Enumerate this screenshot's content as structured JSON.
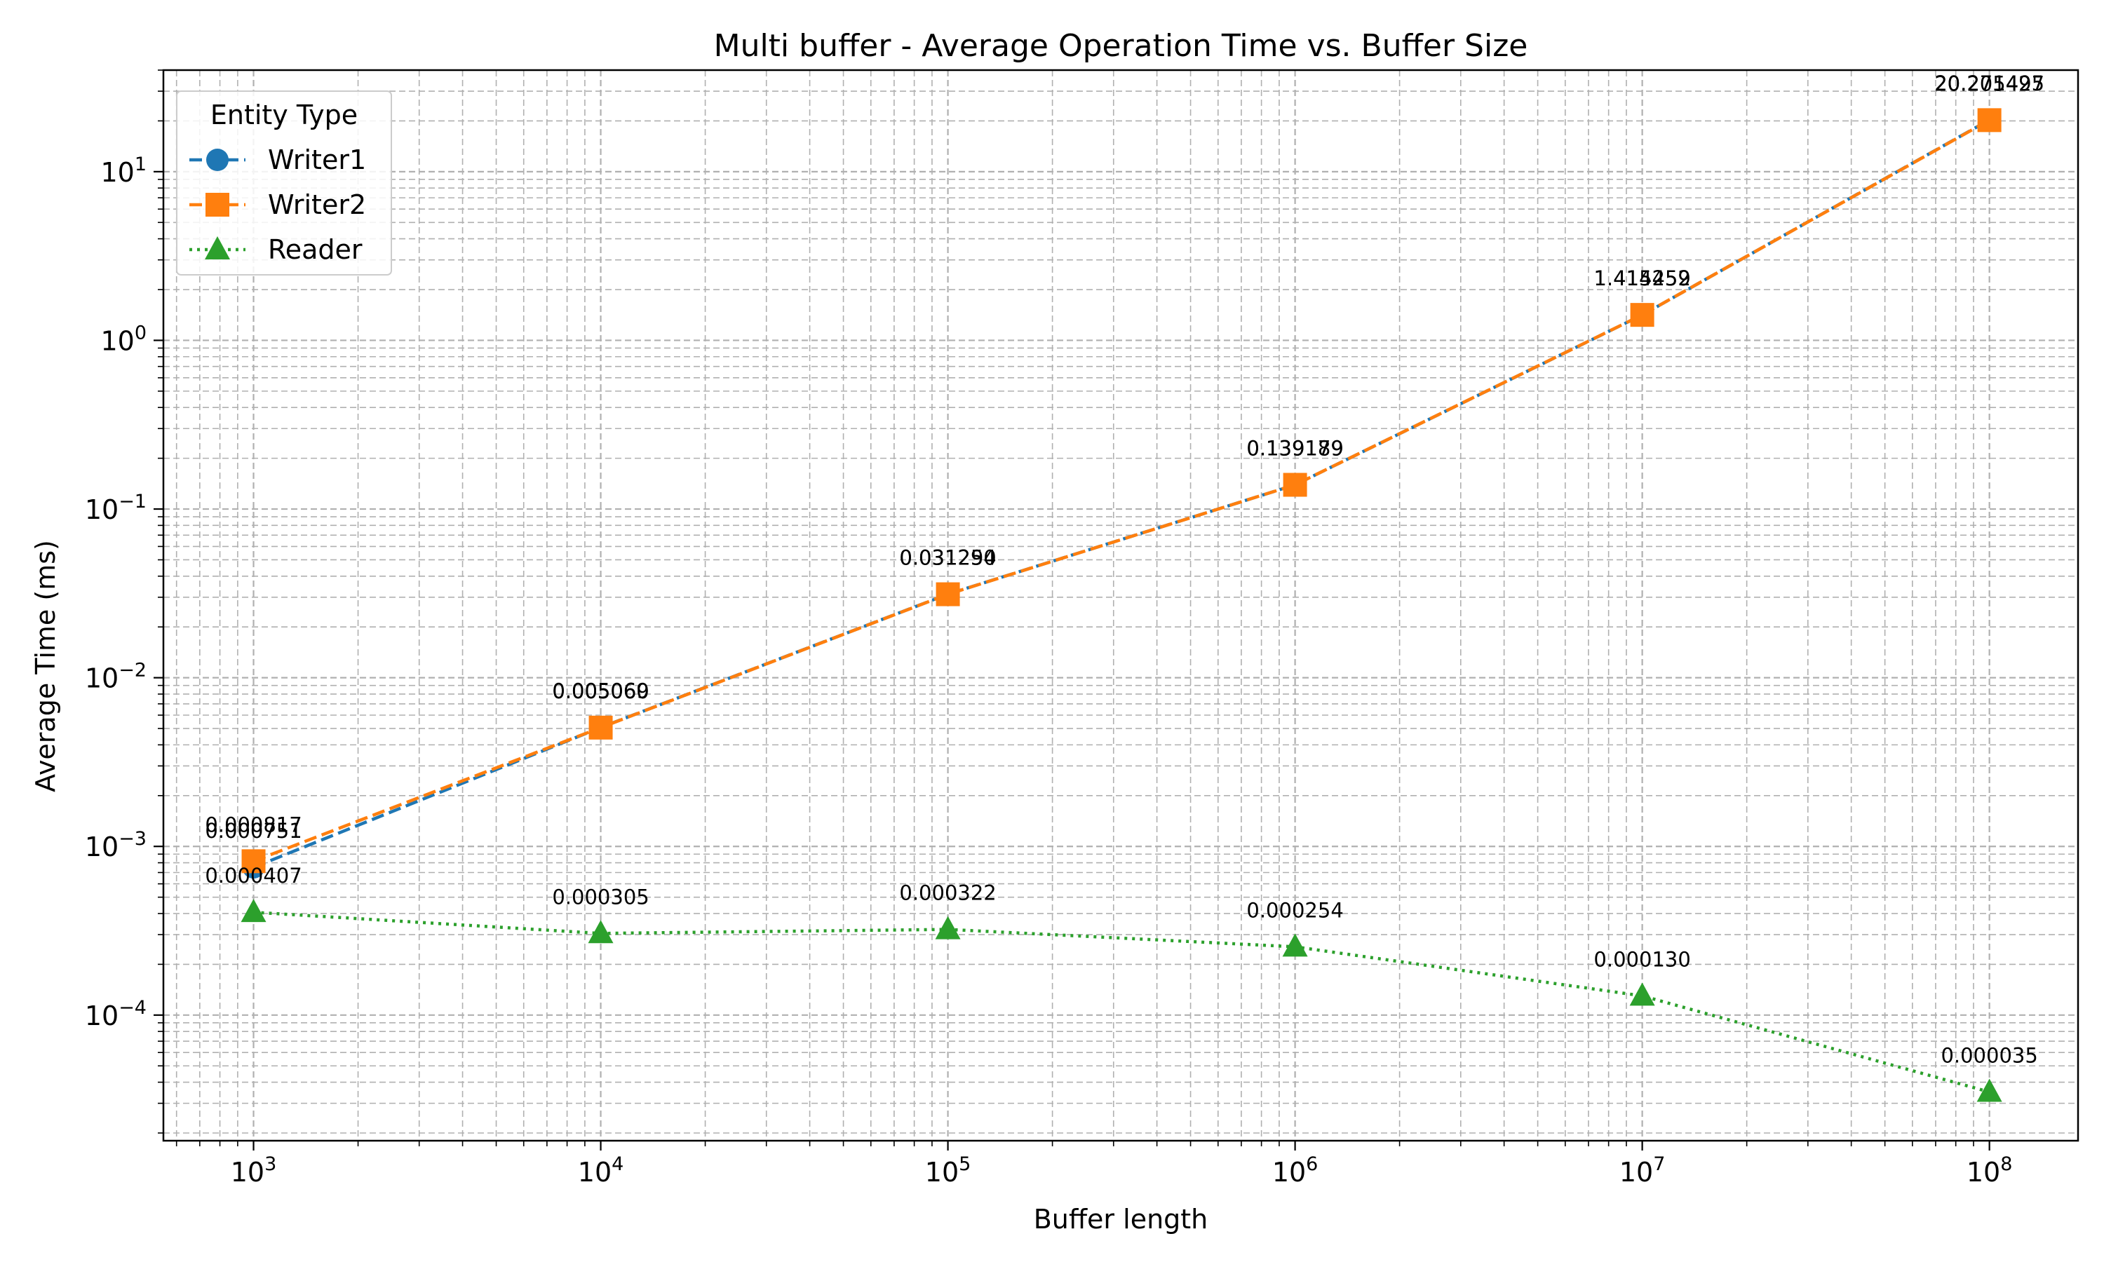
{
  "chart_data": {
    "type": "line",
    "title": "Multi buffer - Average Operation Time vs. Buffer Size",
    "xlabel": "Buffer length",
    "ylabel": "Average Time (ms)",
    "x_scale": "log",
    "y_scale": "log",
    "x": [
      1000,
      10000,
      100000,
      1000000,
      10000000,
      100000000
    ],
    "xlim": [
      550,
      180000000
    ],
    "ylim": [
      1.8e-05,
      40
    ],
    "x_ticks": [
      {
        "base": "10",
        "exp": "3",
        "value": 1000
      },
      {
        "base": "10",
        "exp": "4",
        "value": 10000
      },
      {
        "base": "10",
        "exp": "5",
        "value": 100000
      },
      {
        "base": "10",
        "exp": "6",
        "value": 1000000
      },
      {
        "base": "10",
        "exp": "7",
        "value": 10000000
      },
      {
        "base": "10",
        "exp": "8",
        "value": 100000000
      }
    ],
    "y_ticks": [
      {
        "base": "10",
        "exp": "−4",
        "value": 0.0001
      },
      {
        "base": "10",
        "exp": "−3",
        "value": 0.001
      },
      {
        "base": "10",
        "exp": "−2",
        "value": 0.01
      },
      {
        "base": "10",
        "exp": "−1",
        "value": 0.1
      },
      {
        "base": "10",
        "exp": "0",
        "value": 1
      },
      {
        "base": "10",
        "exp": "1",
        "value": 10
      }
    ],
    "grid": true,
    "legend": {
      "title": "Entity Type",
      "placement": "top-left"
    },
    "series": [
      {
        "name": "Writer1",
        "color": "#1f77b4",
        "marker": "circle",
        "linestyle": "dashed",
        "values": [
          0.000751,
          0.005069,
          0.031294,
          0.139179,
          1.414252,
          20.271495
        ],
        "labels": [
          "0.000751",
          "0.005069",
          "0.031294",
          "0.139179",
          "1.414252",
          "20.271495"
        ]
      },
      {
        "name": "Writer2",
        "color": "#ff7f0e",
        "marker": "square",
        "linestyle": "dashed",
        "values": [
          0.000817,
          0.00506,
          0.03125,
          0.139189,
          1.415459,
          20.205427
        ],
        "labels": [
          "0.000817",
          "0.005060",
          "0.031250",
          "0.139189",
          "1.415459",
          "20.205427"
        ]
      },
      {
        "name": "Reader",
        "color": "#2ca02c",
        "marker": "triangle",
        "linestyle": "dotted",
        "values": [
          0.000407,
          0.000305,
          0.000322,
          0.000254,
          0.00013,
          3.5e-05
        ],
        "labels": [
          "0.000407",
          "0.000305",
          "0.000322",
          "0.000254",
          "0.000130",
          "0.000035"
        ]
      }
    ]
  }
}
